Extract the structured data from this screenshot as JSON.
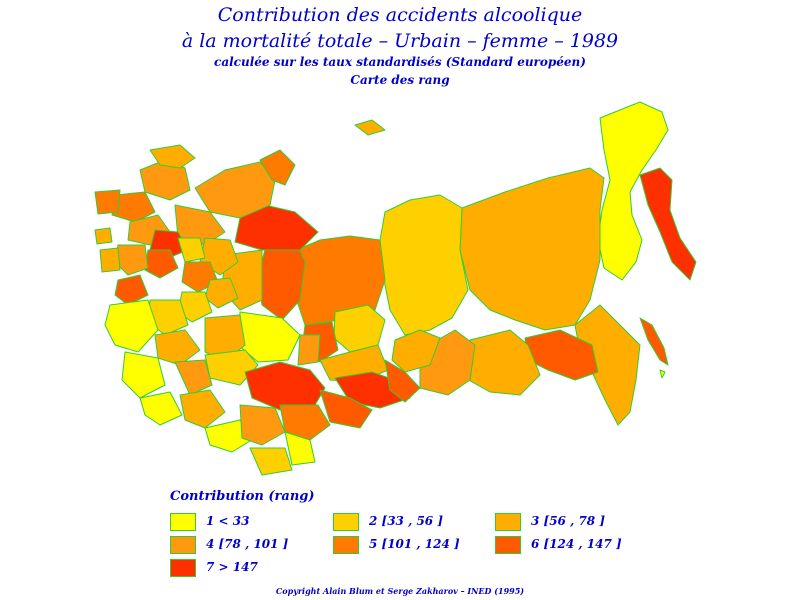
{
  "title": {
    "line1": "Contribution des accidents alcoolique",
    "line2": "à la mortalité totale – Urbain – femme – 1989",
    "line3": "calculée sur les taux standardisés (Standard européen)",
    "line4": "Carte des rang"
  },
  "legend": {
    "title": "Contribution (rang)",
    "items": [
      {
        "label": "1  <  33",
        "color": "#ffff00"
      },
      {
        "label": "2  [33 ,  56 ]",
        "color": "#ffd000"
      },
      {
        "label": "3  [56 ,  78 ]",
        "color": "#ffae00"
      },
      {
        "label": "4  [78 ,  101 ]",
        "color": "#ff9a10"
      },
      {
        "label": "5  [101 ,  124 ]",
        "color": "#ff7a00"
      },
      {
        "label": "6  [124 ,  147 ]",
        "color": "#ff5a00"
      },
      {
        "label": "7  >  147",
        "color": "#ff3000"
      }
    ]
  },
  "colors": {
    "border": "#33cc33",
    "text": "#0000cc"
  },
  "copyright": "Copyright Alain Blum et Serge Zakharov – INED (1995)"
}
